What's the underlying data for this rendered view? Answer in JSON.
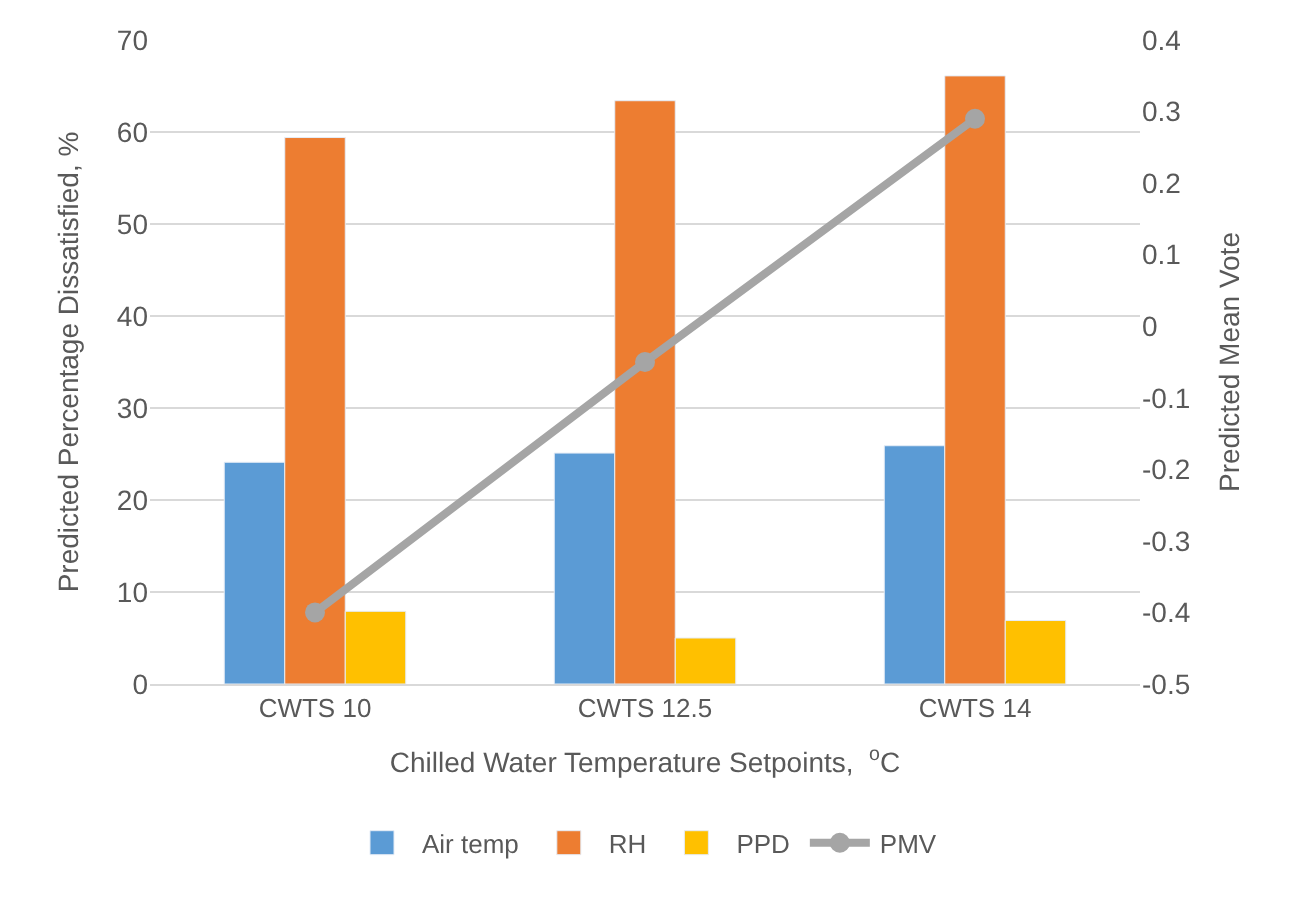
{
  "chart_data": {
    "type": "bar",
    "xlabel": "Chilled Water Temperature Setpoints,  $^{o}$C",
    "ylabel": "Predicted Percentage Dissatisfied, %",
    "y2label": "Predicted Mean Vote",
    "categories": [
      "CWTS 10",
      "CWTS 12.5",
      "CWTS 14"
    ],
    "series": [
      {
        "name": "Air temp",
        "color": "#5b9bd5",
        "values": [
          24.1,
          25.1,
          25.9
        ]
      },
      {
        "name": "RH",
        "color": "#ed7d31",
        "values": [
          59.4,
          63.4,
          66.1
        ]
      },
      {
        "name": "PPD",
        "color": "#ffc000",
        "values": [
          7.9,
          5.0,
          6.9
        ]
      },
      {
        "name": "PMV",
        "color": "#a5a5a5",
        "type": "line",
        "axis": "y2",
        "marker": "circle",
        "values": [
          -0.4,
          -0.05,
          0.29
        ]
      }
    ],
    "ylim": [
      0,
      70
    ],
    "yticks": [
      0,
      10,
      20,
      30,
      40,
      50,
      60,
      70
    ],
    "y2lim": [
      -0.5,
      0.4
    ],
    "y2ticks": [
      -0.5,
      -0.4,
      -0.3,
      -0.2,
      -0.1,
      0,
      0.1,
      0.2,
      0.3,
      0.4
    ],
    "grid": "y",
    "legend": "bottom"
  }
}
